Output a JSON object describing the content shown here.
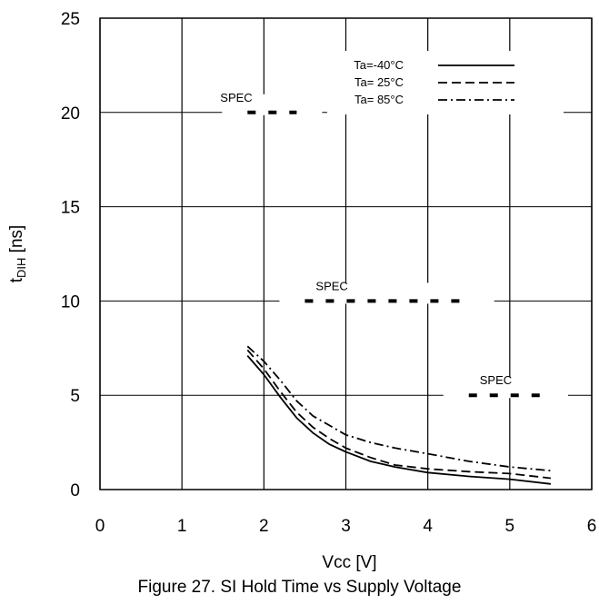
{
  "caption": "Figure 27. SI Hold Time vs Supply Voltage",
  "chart_data": {
    "type": "line",
    "title": "",
    "xlabel": "Vcc [V]",
    "ylabel_main": "t",
    "ylabel_sub": "DIH",
    "ylabel_unit": " [ns]",
    "xlim": [
      0,
      6
    ],
    "ylim": [
      0,
      25
    ],
    "x_ticks": [
      0,
      1,
      2,
      3,
      4,
      5,
      6
    ],
    "y_ticks": [
      0,
      5,
      10,
      15,
      20,
      25
    ],
    "grid": true,
    "legend_position": "top-right",
    "series": [
      {
        "name": "Ta=-40°C",
        "style": "solid",
        "x": [
          1.8,
          2.0,
          2.2,
          2.4,
          2.6,
          2.8,
          3.0,
          3.3,
          3.6,
          4.0,
          4.5,
          5.0,
          5.5
        ],
        "y": [
          7.1,
          6.1,
          4.9,
          3.8,
          3.0,
          2.4,
          2.0,
          1.5,
          1.2,
          0.9,
          0.7,
          0.55,
          0.3
        ]
      },
      {
        "name": "Ta= 25°C",
        "style": "dashed",
        "x": [
          1.8,
          2.0,
          2.2,
          2.4,
          2.6,
          2.8,
          3.0,
          3.3,
          3.6,
          4.0,
          4.5,
          5.0,
          5.5
        ],
        "y": [
          7.4,
          6.4,
          5.2,
          4.1,
          3.3,
          2.7,
          2.2,
          1.7,
          1.3,
          1.1,
          0.95,
          0.85,
          0.6
        ]
      },
      {
        "name": "Ta= 85°C",
        "style": "dashdot",
        "x": [
          1.8,
          2.0,
          2.2,
          2.4,
          2.6,
          2.8,
          3.0,
          3.3,
          3.6,
          4.0,
          4.5,
          5.0,
          5.5
        ],
        "y": [
          7.6,
          6.8,
          5.8,
          4.7,
          3.9,
          3.4,
          2.9,
          2.5,
          2.2,
          1.9,
          1.5,
          1.2,
          1.0
        ]
      }
    ],
    "spec_lines": [
      {
        "label": "SPEC",
        "y": 20,
        "x": [
          1.8,
          2.4
        ]
      },
      {
        "label": "SPEC",
        "y": 10,
        "x": [
          2.5,
          4.5
        ]
      },
      {
        "label": "SPEC",
        "y": 5,
        "x": [
          4.5,
          5.4
        ]
      }
    ]
  }
}
